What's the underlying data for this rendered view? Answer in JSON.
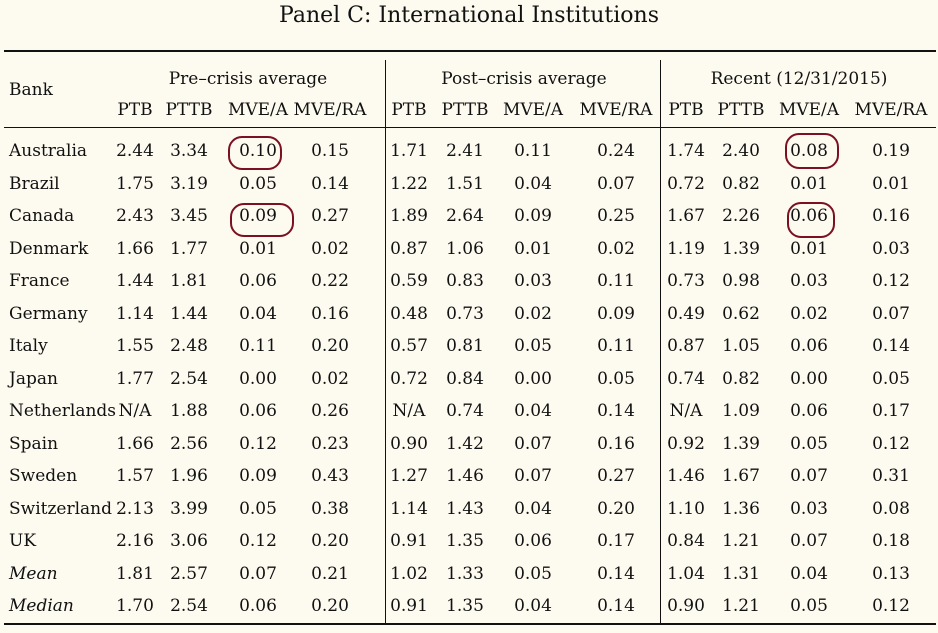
{
  "title": "Panel C: International Institutions",
  "header": {
    "bank": "Bank",
    "groups": [
      "Pre–crisis average",
      "Post–crisis average",
      "Recent (12/31/2015)"
    ],
    "columns": [
      "PTB",
      "PTTB",
      "MVE/A",
      "MVE/RA"
    ]
  },
  "rows": [
    {
      "bank": "Australia",
      "values": [
        "2.44",
        "3.34",
        "0.10",
        "0.15",
        "1.71",
        "2.41",
        "0.11",
        "0.24",
        "1.74",
        "2.40",
        "0.08",
        "0.19"
      ]
    },
    {
      "bank": "Brazil",
      "values": [
        "1.75",
        "3.19",
        "0.05",
        "0.14",
        "1.22",
        "1.51",
        "0.04",
        "0.07",
        "0.72",
        "0.82",
        "0.01",
        "0.01"
      ]
    },
    {
      "bank": "Canada",
      "values": [
        "2.43",
        "3.45",
        "0.09",
        "0.27",
        "1.89",
        "2.64",
        "0.09",
        "0.25",
        "1.67",
        "2.26",
        "0.06",
        "0.16"
      ]
    },
    {
      "bank": "Denmark",
      "values": [
        "1.66",
        "1.77",
        "0.01",
        "0.02",
        "0.87",
        "1.06",
        "0.01",
        "0.02",
        "1.19",
        "1.39",
        "0.01",
        "0.03"
      ]
    },
    {
      "bank": "France",
      "values": [
        "1.44",
        "1.81",
        "0.06",
        "0.22",
        "0.59",
        "0.83",
        "0.03",
        "0.11",
        "0.73",
        "0.98",
        "0.03",
        "0.12"
      ]
    },
    {
      "bank": "Germany",
      "values": [
        "1.14",
        "1.44",
        "0.04",
        "0.16",
        "0.48",
        "0.73",
        "0.02",
        "0.09",
        "0.49",
        "0.62",
        "0.02",
        "0.07"
      ]
    },
    {
      "bank": "Italy",
      "values": [
        "1.55",
        "2.48",
        "0.11",
        "0.20",
        "0.57",
        "0.81",
        "0.05",
        "0.11",
        "0.87",
        "1.05",
        "0.06",
        "0.14"
      ]
    },
    {
      "bank": "Japan",
      "values": [
        "1.77",
        "2.54",
        "0.00",
        "0.02",
        "0.72",
        "0.84",
        "0.00",
        "0.05",
        "0.74",
        "0.82",
        "0.00",
        "0.05"
      ]
    },
    {
      "bank": "Netherlands",
      "values": [
        "N/A",
        "1.88",
        "0.06",
        "0.26",
        "N/A",
        "0.74",
        "0.04",
        "0.14",
        "N/A",
        "1.09",
        "0.06",
        "0.17"
      ]
    },
    {
      "bank": "Spain",
      "values": [
        "1.66",
        "2.56",
        "0.12",
        "0.23",
        "0.90",
        "1.42",
        "0.07",
        "0.16",
        "0.92",
        "1.39",
        "0.05",
        "0.12"
      ]
    },
    {
      "bank": "Sweden",
      "values": [
        "1.57",
        "1.96",
        "0.09",
        "0.43",
        "1.27",
        "1.46",
        "0.07",
        "0.27",
        "1.46",
        "1.67",
        "0.07",
        "0.31"
      ]
    },
    {
      "bank": "Switzerland",
      "values": [
        "2.13",
        "3.99",
        "0.05",
        "0.38",
        "1.14",
        "1.43",
        "0.04",
        "0.20",
        "1.10",
        "1.36",
        "0.03",
        "0.08"
      ]
    },
    {
      "bank": "UK",
      "values": [
        "2.16",
        "3.06",
        "0.12",
        "0.20",
        "0.91",
        "1.35",
        "0.06",
        "0.17",
        "0.84",
        "1.21",
        "0.07",
        "0.18"
      ]
    },
    {
      "bank": "Mean",
      "italic": true,
      "values": [
        "1.81",
        "2.57",
        "0.07",
        "0.21",
        "1.02",
        "1.33",
        "0.05",
        "0.14",
        "1.04",
        "1.31",
        "0.04",
        "0.13"
      ]
    },
    {
      "bank": "Median",
      "italic": true,
      "values": [
        "1.70",
        "2.54",
        "0.06",
        "0.20",
        "0.91",
        "1.35",
        "0.04",
        "0.14",
        "0.90",
        "1.21",
        "0.05",
        "0.12"
      ]
    }
  ],
  "annotations": {
    "circle_color": "#7a1020",
    "circled_cells": [
      {
        "bank": "Australia",
        "column": "Pre-crisis MVE/A",
        "value": "0.10"
      },
      {
        "bank": "Canada",
        "column": "Pre-crisis MVE/A",
        "value": "0.09"
      },
      {
        "bank": "Australia",
        "column": "Recent MVE/A",
        "value": "0.08"
      },
      {
        "bank": "Canada",
        "column": "Recent MVE/A",
        "value": "0.06"
      }
    ]
  }
}
